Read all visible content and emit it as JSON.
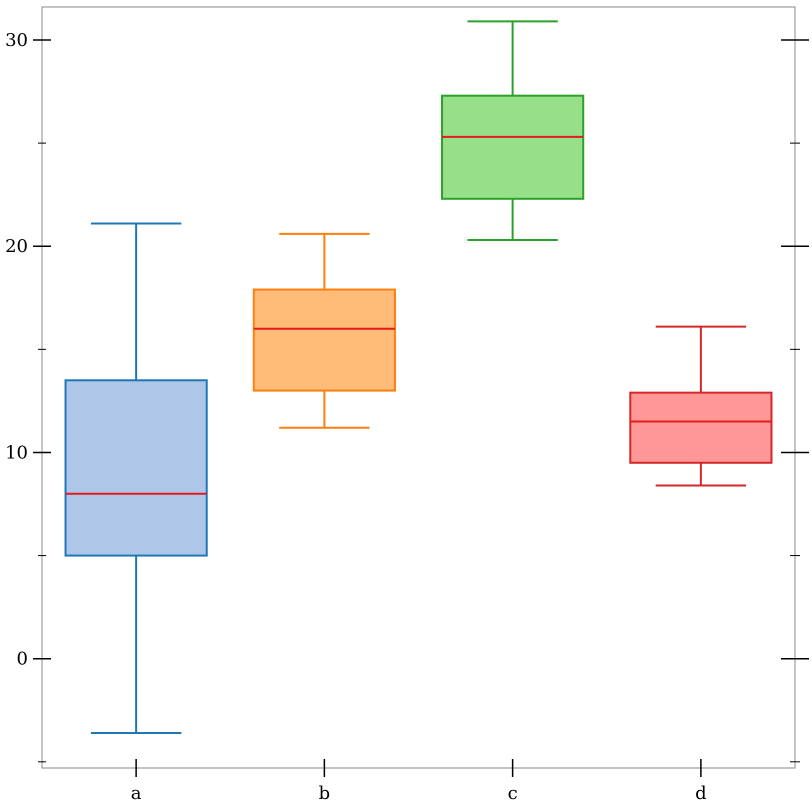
{
  "chart_data": {
    "type": "box",
    "title": "",
    "xlabel": "",
    "ylabel": "",
    "ylim": [
      -5.3,
      31.6
    ],
    "yticks_major": [
      0,
      10,
      20,
      30
    ],
    "yticks_minor": [
      -5,
      5,
      15,
      25
    ],
    "y_tick_labels": [
      "0",
      "10",
      "20",
      "30"
    ],
    "categories": [
      "a",
      "b",
      "c",
      "d"
    ],
    "grid": false,
    "legend": "none",
    "median_color": "#e41a1c",
    "series": [
      {
        "category": "a",
        "whisker_low": -3.6,
        "q1": 5.0,
        "median": 8.0,
        "q3": 13.5,
        "whisker_high": 21.1,
        "fill": "#aec7e8",
        "stroke": "#1f77b4"
      },
      {
        "category": "b",
        "whisker_low": 11.2,
        "q1": 13.0,
        "median": 16.0,
        "q3": 17.9,
        "whisker_high": 20.6,
        "fill": "#ffbb78",
        "stroke": "#ff7f0e"
      },
      {
        "category": "c",
        "whisker_low": 20.3,
        "q1": 22.3,
        "median": 25.3,
        "q3": 27.3,
        "whisker_high": 30.9,
        "fill": "#98df8a",
        "stroke": "#2ca02c"
      },
      {
        "category": "d",
        "whisker_low": 8.4,
        "q1": 9.5,
        "median": 11.5,
        "q3": 12.9,
        "whisker_high": 16.1,
        "fill": "#ff9896",
        "stroke": "#d62728"
      }
    ]
  }
}
